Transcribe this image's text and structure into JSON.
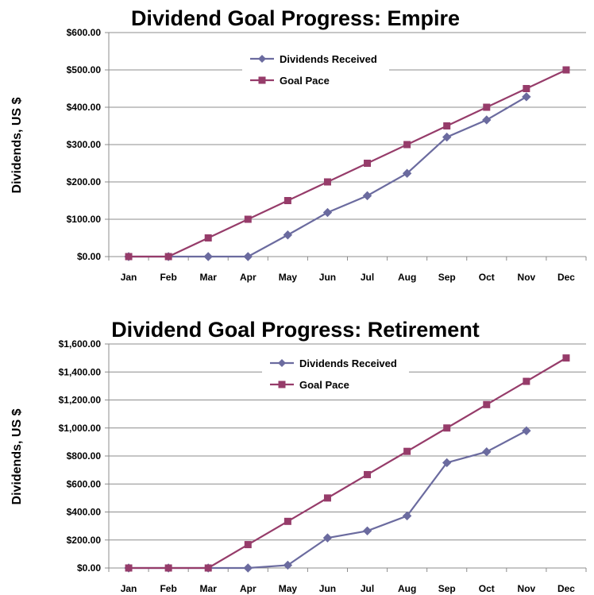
{
  "chart_data": [
    {
      "type": "line",
      "title": "Dividend Goal Progress: Empire",
      "xlabel": "",
      "ylabel": "Dividends, US $",
      "categories": [
        "Jan",
        "Feb",
        "Mar",
        "Apr",
        "May",
        "Jun",
        "Jul",
        "Aug",
        "Sep",
        "Oct",
        "Nov",
        "Dec"
      ],
      "ylim": [
        0,
        600
      ],
      "yticks": [
        "$0.00",
        "$100.00",
        "$200.00",
        "$300.00",
        "$400.00",
        "$500.00",
        "$600.00"
      ],
      "grid": true,
      "legend_position": "top-center",
      "series": [
        {
          "name": "Dividends Received",
          "color": "#6b6b9f",
          "marker": "diamond",
          "values": [
            0,
            0,
            0,
            0,
            58,
            118,
            163,
            223,
            320,
            366,
            428,
            null
          ]
        },
        {
          "name": "Goal Pace",
          "color": "#963c6a",
          "marker": "square",
          "values": [
            0,
            0,
            50,
            100,
            150,
            200,
            250,
            300,
            350,
            400,
            450,
            500
          ]
        }
      ]
    },
    {
      "type": "line",
      "title": "Dividend Goal Progress: Retirement",
      "xlabel": "",
      "ylabel": "Dividends, US $",
      "categories": [
        "Jan",
        "Feb",
        "Mar",
        "Apr",
        "May",
        "Jun",
        "Jul",
        "Aug",
        "Sep",
        "Oct",
        "Nov",
        "Dec"
      ],
      "ylim": [
        0,
        1600
      ],
      "yticks": [
        "$0.00",
        "$200.00",
        "$400.00",
        "$600.00",
        "$800.00",
        "$1,000.00",
        "$1,200.00",
        "$1,400.00",
        "$1,600.00"
      ],
      "grid": true,
      "legend_position": "top-center",
      "series": [
        {
          "name": "Dividends Received",
          "color": "#6b6b9f",
          "marker": "diamond",
          "values": [
            0,
            0,
            0,
            0,
            20,
            215,
            265,
            372,
            752,
            830,
            980,
            null
          ]
        },
        {
          "name": "Goal Pace",
          "color": "#963c6a",
          "marker": "square",
          "values": [
            0,
            0,
            0,
            167,
            333,
            500,
            667,
            833,
            1000,
            1167,
            1333,
            1500
          ]
        }
      ]
    }
  ]
}
